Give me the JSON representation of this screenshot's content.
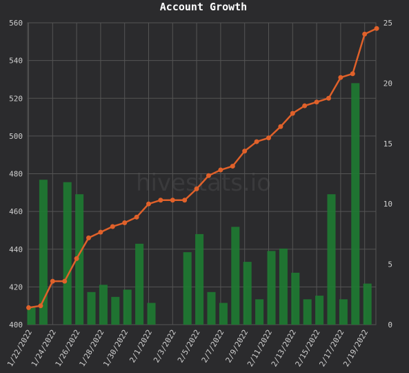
{
  "chart_data": {
    "type": "bar+line",
    "title": "Account Growth",
    "watermark": "hivestats.io",
    "categories": [
      "1/22/2022",
      "1/23/2022",
      "1/24/2022",
      "1/25/2022",
      "1/26/2022",
      "1/27/2022",
      "1/28/2022",
      "1/29/2022",
      "1/30/2022",
      "1/31/2022",
      "2/1/2022",
      "2/2/2022",
      "2/3/2022",
      "2/4/2022",
      "2/5/2022",
      "2/6/2022",
      "2/7/2022",
      "2/8/2022",
      "2/9/2022",
      "2/10/2022",
      "2/11/2022",
      "2/12/2022",
      "2/13/2022",
      "2/14/2022",
      "2/15/2022",
      "2/16/2022",
      "2/17/2022",
      "2/18/2022",
      "2/19/2022",
      "2/20/2022"
    ],
    "x_tick_labels": [
      "1/22/2022",
      "1/24/2022",
      "1/26/2022",
      "1/28/2022",
      "1/30/2022",
      "2/1/2022",
      "2/3/2022",
      "2/5/2022",
      "2/7/2022",
      "2/9/2022",
      "2/11/2022",
      "2/13/2022",
      "2/15/2022",
      "2/17/2022",
      "2/19/2022"
    ],
    "series": [
      {
        "type": "line",
        "axis": "left",
        "color": "#e0612a",
        "values": [
          409,
          410,
          423,
          423,
          435,
          446,
          449,
          452,
          454,
          457,
          464,
          466,
          466,
          466,
          472,
          479,
          482,
          484,
          492,
          497,
          499,
          505,
          512,
          516,
          518,
          520,
          531,
          533,
          554,
          557
        ]
      },
      {
        "type": "bar",
        "axis": "right",
        "color": "#1e7a32",
        "values": [
          1.5,
          12,
          0,
          11.8,
          10.8,
          2.7,
          3.3,
          2.3,
          2.9,
          6.7,
          1.8,
          0,
          0,
          6,
          7.5,
          2.7,
          1.8,
          8.1,
          5.2,
          2.1,
          6.1,
          6.3,
          4.3,
          2.1,
          2.4,
          10.8,
          2.1,
          20,
          3.4,
          0
        ]
      }
    ],
    "ylim_left": [
      400,
      560
    ],
    "yticks_left": [
      400,
      420,
      440,
      460,
      480,
      500,
      520,
      540,
      560
    ],
    "ylim_right": [
      0,
      25
    ],
    "yticks_right": [
      0,
      5,
      10,
      15,
      20,
      25
    ],
    "grid": true
  }
}
